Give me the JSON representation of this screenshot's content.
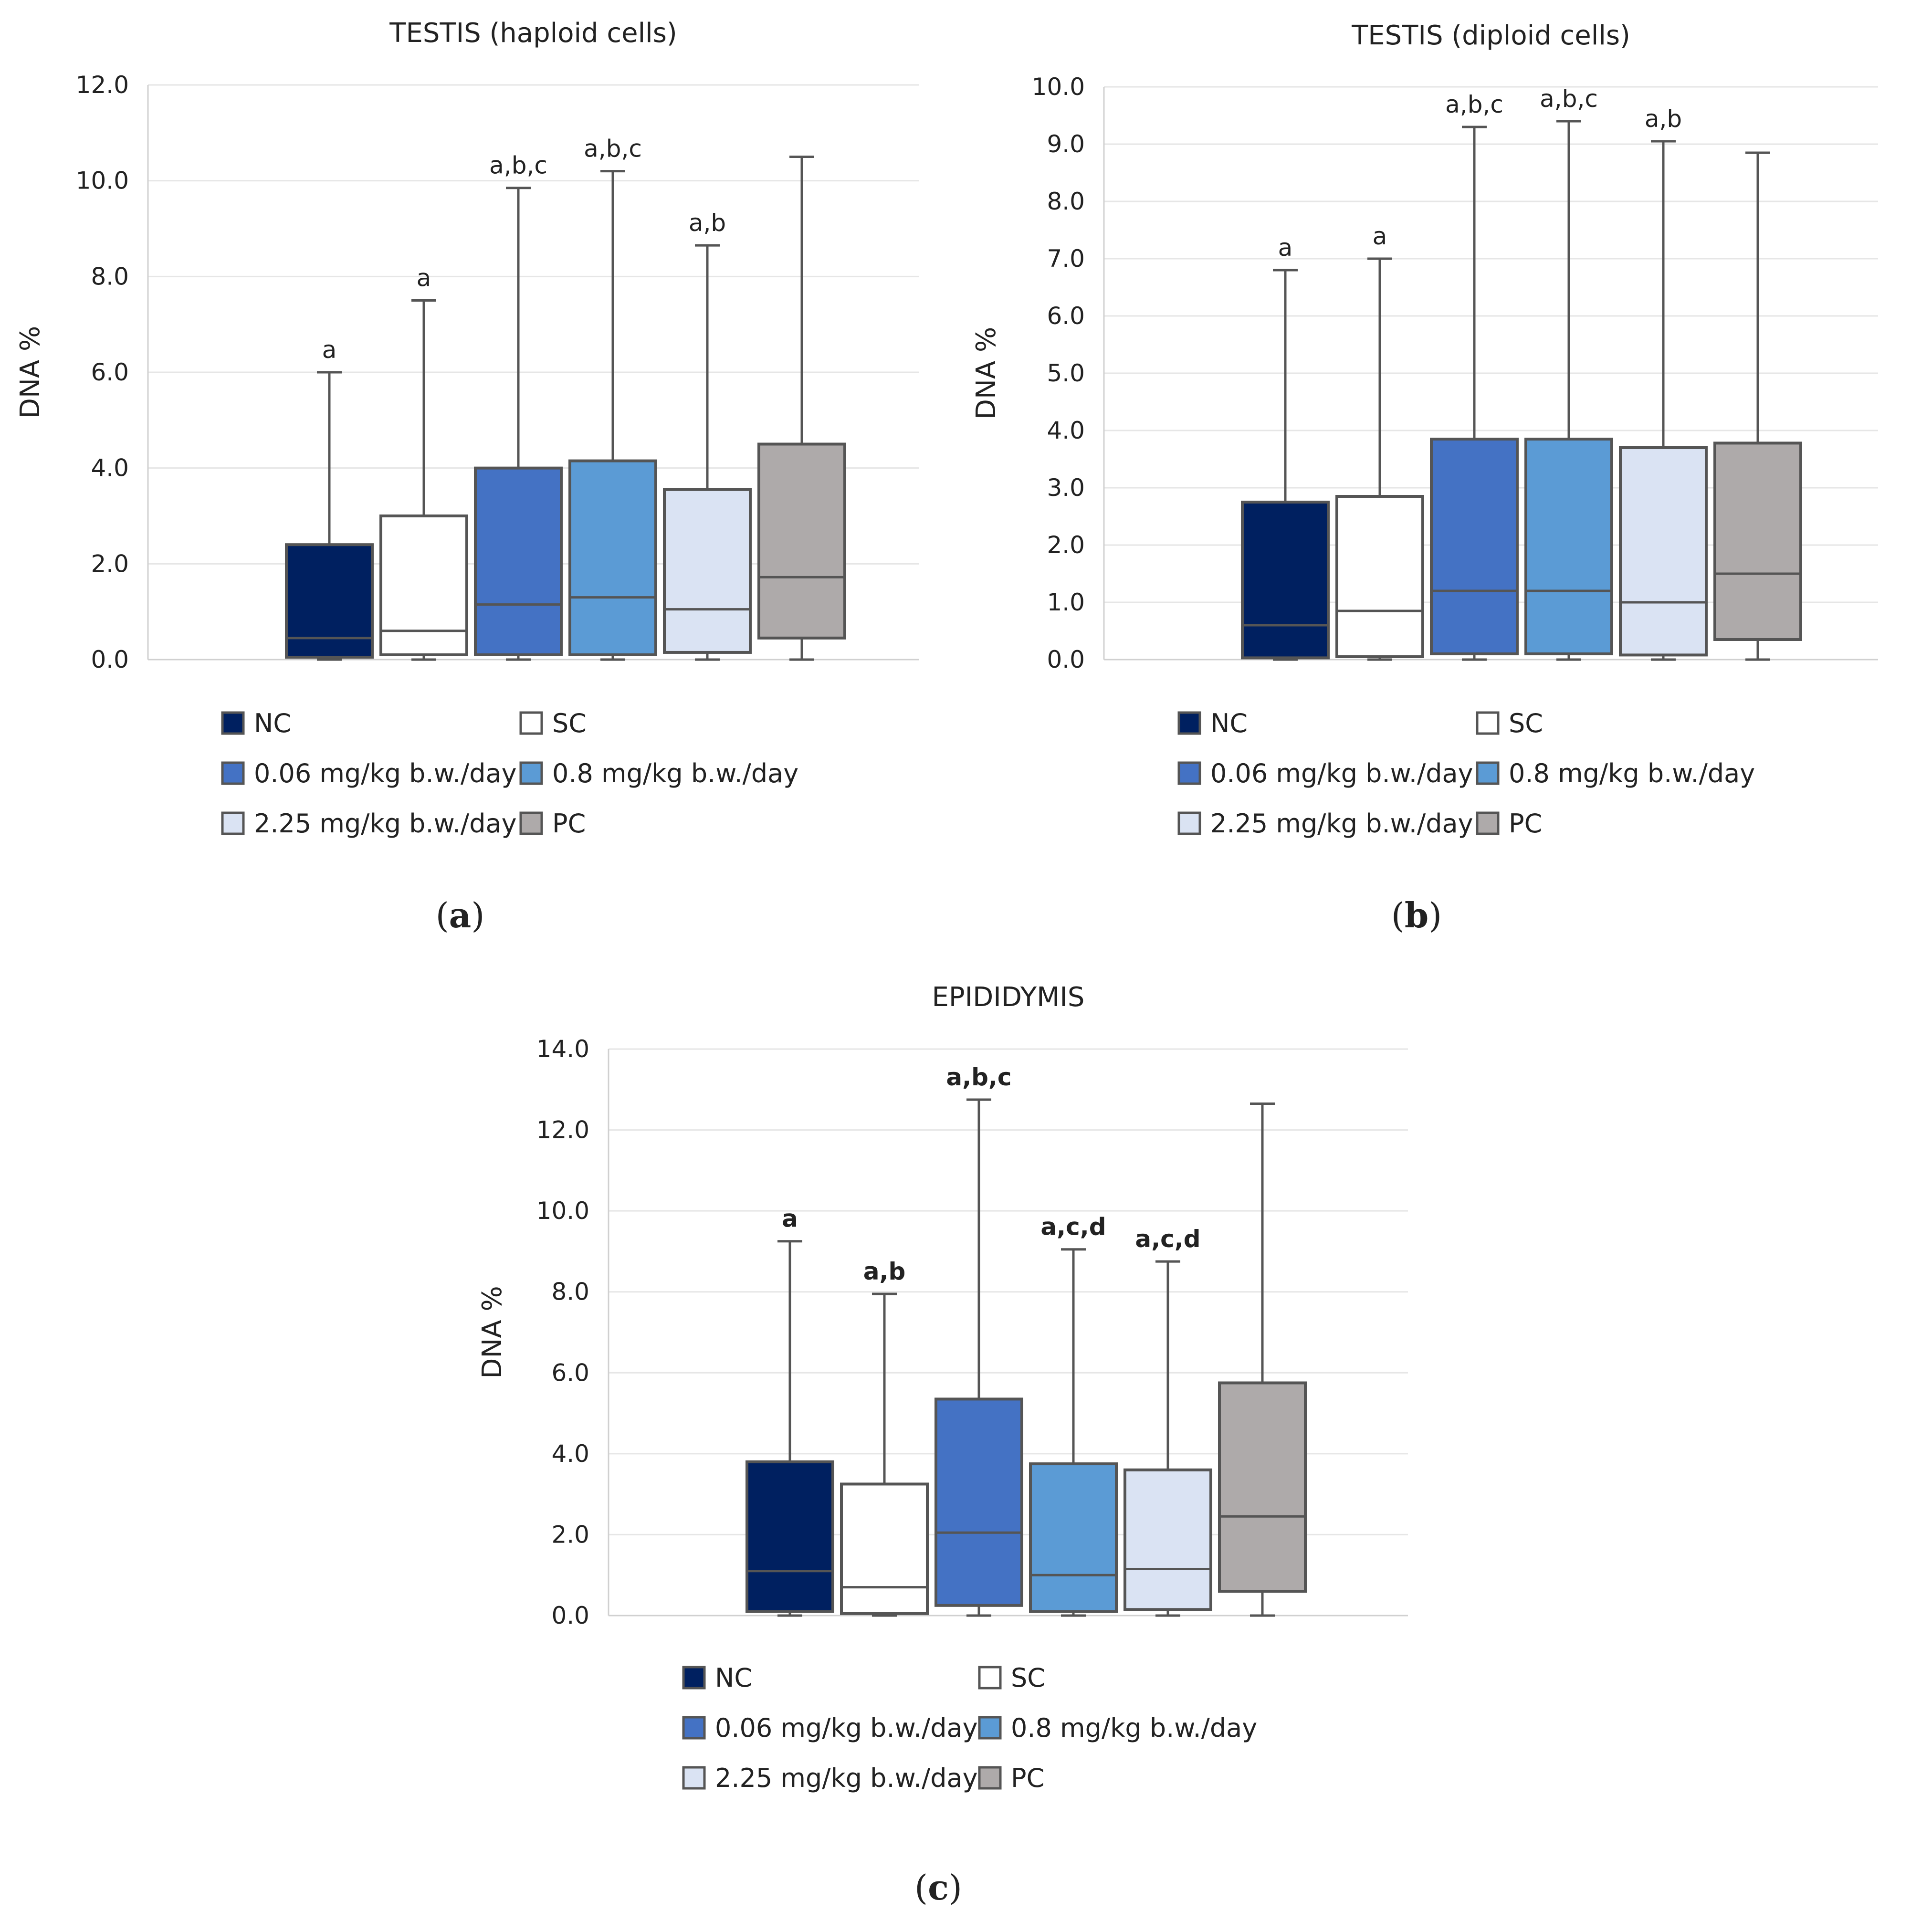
{
  "legend_items": [
    {
      "label": "NC",
      "color": "#002060"
    },
    {
      "label": "SC",
      "color": "#ffffff"
    },
    {
      "label": "0.06 mg/kg b.w./day",
      "color": "#4472c4"
    },
    {
      "label": "0.8 mg/kg b.w./day",
      "color": "#5b9bd5"
    },
    {
      "label": "2.25 mg/kg b.w./day",
      "color": "#dae3f3"
    },
    {
      "label": "PC",
      "color": "#aeaaaa"
    }
  ],
  "chart_data": [
    {
      "type": "box",
      "panel_label": "a",
      "title": "TESTIS (haploid cells)",
      "ylabel": "DNA %",
      "ylim": [
        0,
        12
      ],
      "yticks": [
        "0.0",
        "2.0",
        "4.0",
        "6.0",
        "8.0",
        "10.0",
        "12.0"
      ],
      "sig_bold": false,
      "series": [
        {
          "name": "NC",
          "min": 0,
          "q1": 0.05,
          "median": 0.45,
          "q3": 2.4,
          "max": 6.0,
          "sig": "a"
        },
        {
          "name": "SC",
          "min": 0,
          "q1": 0.1,
          "median": 0.6,
          "q3": 3.0,
          "max": 7.5,
          "sig": "a"
        },
        {
          "name": "0.06 mg/kg b.w./day",
          "min": 0,
          "q1": 0.1,
          "median": 1.15,
          "q3": 4.0,
          "max": 9.85,
          "sig": "a,b,c"
        },
        {
          "name": "0.8 mg/kg b.w./day",
          "min": 0,
          "q1": 0.1,
          "median": 1.3,
          "q3": 4.15,
          "max": 10.2,
          "sig": "a,b,c"
        },
        {
          "name": "2.25 mg/kg b.w./day",
          "min": 0,
          "q1": 0.15,
          "median": 1.05,
          "q3": 3.55,
          "max": 8.65,
          "sig": "a,b"
        },
        {
          "name": "PC",
          "min": 0,
          "q1": 0.45,
          "median": 1.72,
          "q3": 4.5,
          "max": 10.5,
          "sig": ""
        }
      ]
    },
    {
      "type": "box",
      "panel_label": "b",
      "title": "TESTIS (diploid cells)",
      "ylabel": "DNA %",
      "ylim": [
        0,
        10
      ],
      "yticks": [
        "0.0",
        "1.0",
        "2.0",
        "3.0",
        "4.0",
        "5.0",
        "6.0",
        "7.0",
        "8.0",
        "9.0",
        "10.0"
      ],
      "sig_bold": false,
      "series": [
        {
          "name": "NC",
          "min": 0,
          "q1": 0.03,
          "median": 0.6,
          "q3": 2.75,
          "max": 6.8,
          "sig": "a"
        },
        {
          "name": "SC",
          "min": 0,
          "q1": 0.05,
          "median": 0.85,
          "q3": 2.85,
          "max": 7.0,
          "sig": "a"
        },
        {
          "name": "0.06 mg/kg b.w./day",
          "min": 0,
          "q1": 0.1,
          "median": 1.2,
          "q3": 3.85,
          "max": 9.3,
          "sig": "a,b,c"
        },
        {
          "name": "0.8 mg/kg b.w./day",
          "min": 0,
          "q1": 0.1,
          "median": 1.2,
          "q3": 3.85,
          "max": 9.4,
          "sig": "a,b,c"
        },
        {
          "name": "2.25 mg/kg b.w./day",
          "min": 0,
          "q1": 0.08,
          "median": 1.0,
          "q3": 3.7,
          "max": 9.05,
          "sig": "a,b"
        },
        {
          "name": "PC",
          "min": 0,
          "q1": 0.35,
          "median": 1.5,
          "q3": 3.78,
          "max": 8.85,
          "sig": ""
        }
      ]
    },
    {
      "type": "box",
      "panel_label": "c",
      "title": "EPIDIDYMIS",
      "ylabel": "DNA %",
      "ylim": [
        0,
        14
      ],
      "yticks": [
        "0.0",
        "2.0",
        "4.0",
        "6.0",
        "8.0",
        "10.0",
        "12.0",
        "14.0"
      ],
      "sig_bold": true,
      "series": [
        {
          "name": "NC",
          "min": 0,
          "q1": 0.1,
          "median": 1.1,
          "q3": 3.8,
          "max": 9.25,
          "sig": "a"
        },
        {
          "name": "SC",
          "min": 0,
          "q1": 0.05,
          "median": 0.7,
          "q3": 3.25,
          "max": 7.95,
          "sig": "a,b"
        },
        {
          "name": "0.06 mg/kg b.w./day",
          "min": 0,
          "q1": 0.25,
          "median": 2.05,
          "q3": 5.35,
          "max": 12.75,
          "sig": "a,b,c"
        },
        {
          "name": "0.8 mg/kg b.w./day",
          "min": 0,
          "q1": 0.1,
          "median": 1.0,
          "q3": 3.75,
          "max": 9.05,
          "sig": "a,c,d"
        },
        {
          "name": "2.25 mg/kg b.w./day",
          "min": 0,
          "q1": 0.15,
          "median": 1.15,
          "q3": 3.6,
          "max": 8.75,
          "sig": "a,c,d"
        },
        {
          "name": "PC",
          "min": 0,
          "q1": 0.6,
          "median": 2.45,
          "q3": 5.75,
          "max": 12.65,
          "sig": ""
        }
      ]
    }
  ]
}
